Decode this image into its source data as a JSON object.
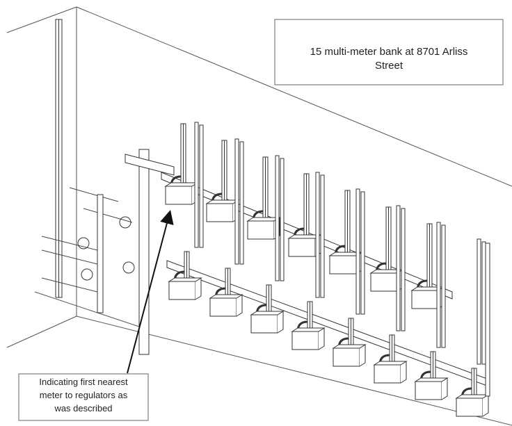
{
  "title_box": {
    "lines": [
      "15 multi-meter bank at 8701 Arliss",
      "Street"
    ]
  },
  "callout": {
    "lines": [
      "Indicating first nearest",
      "meter to regulators as",
      "was described"
    ]
  }
}
